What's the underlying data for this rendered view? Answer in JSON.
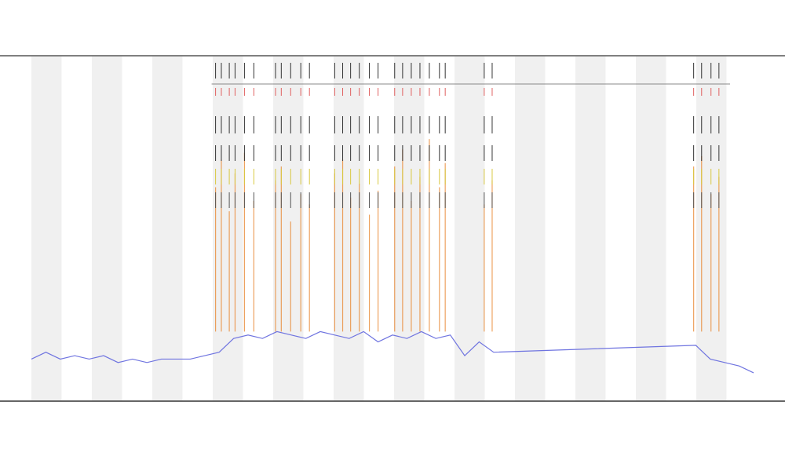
{
  "chart_data": {
    "type": "line",
    "xlim": [
      0,
      100
    ],
    "ylim": [
      0,
      100
    ],
    "series": [
      {
        "color": "#6f74e0",
        "x": [
          0,
          2,
          4,
          6,
          8,
          10,
          12,
          14,
          16,
          18,
          20,
          22,
          24,
          26,
          28,
          30,
          32,
          34,
          36,
          38,
          40,
          42,
          44,
          46,
          48,
          50,
          52,
          54,
          56,
          58,
          60,
          62,
          64,
          92,
          94,
          96,
          98,
          100
        ],
        "values": [
          12,
          14,
          12,
          13,
          12,
          13,
          11,
          12,
          11,
          12,
          12,
          12,
          13,
          14,
          18,
          19,
          18,
          20,
          19,
          18,
          20,
          19,
          18,
          20,
          17,
          19,
          18,
          20,
          18,
          19,
          13,
          17,
          14,
          16,
          12,
          11,
          10,
          8
        ]
      }
    ],
    "events": {
      "color": "#e8832a",
      "x": [
        25.5,
        26.3,
        27.4,
        28.2,
        29.5,
        30.8,
        33.8,
        34.6,
        35.9,
        37.3,
        38.5,
        42.0,
        43.1,
        44.2,
        45.4,
        46.8,
        48.0,
        50.3,
        51.4,
        52.6,
        53.8,
        55.1,
        56.5,
        57.3,
        62.7,
        63.8,
        91.7,
        92.8,
        94.1,
        95.2
      ],
      "values": [
        62,
        70,
        55,
        66,
        72,
        58,
        64,
        68,
        52,
        60,
        57,
        66,
        70,
        59,
        63,
        54,
        61,
        68,
        73,
        58,
        65,
        76,
        62,
        69,
        57,
        64,
        68,
        71,
        60,
        65
      ]
    }
  }
}
